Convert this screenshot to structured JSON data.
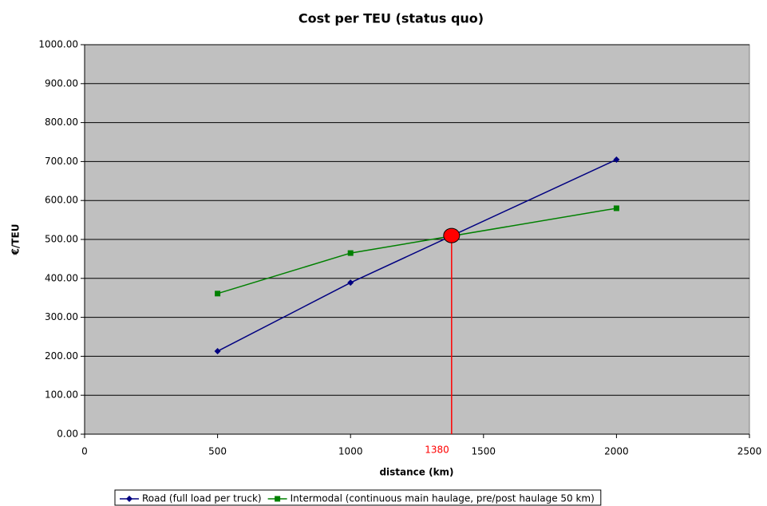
{
  "chart_data": {
    "type": "line",
    "title": "Cost per TEU (status quo)",
    "x_label": "distance (km)",
    "y_label": "€/TEU",
    "x": [
      500,
      1000,
      2000
    ],
    "series": [
      {
        "name": "Road (full load per truck)",
        "color": "#000080",
        "marker": "diamond",
        "values": [
          213,
          389,
          705
        ]
      },
      {
        "name": "Intermodal (continuous main haulage, pre/post haulage 50 km)",
        "color": "#008000",
        "marker": "square",
        "values": [
          361,
          465,
          580
        ]
      }
    ],
    "xlim": [
      0,
      2500
    ],
    "xticks": [
      0,
      500,
      1000,
      1500,
      2000,
      2500
    ],
    "ylim": [
      0,
      1000
    ],
    "yticks": [
      {
        "value": 0,
        "label": "0.00"
      },
      {
        "value": 100,
        "label": "100.00"
      },
      {
        "value": 200,
        "label": "200.00"
      },
      {
        "value": 300,
        "label": "300.00"
      },
      {
        "value": 400,
        "label": "400.00"
      },
      {
        "value": 500,
        "label": "500.00"
      },
      {
        "value": 600,
        "label": "600.00"
      },
      {
        "value": 700,
        "label": "700.00"
      },
      {
        "value": 800,
        "label": "800.00"
      },
      {
        "value": 900,
        "label": "900.00"
      },
      {
        "value": 1000,
        "label": "1000.00"
      }
    ],
    "grid": true,
    "legend": "bottom",
    "annotation": {
      "x": 1380,
      "y": 510,
      "color": "#ff0000"
    }
  }
}
